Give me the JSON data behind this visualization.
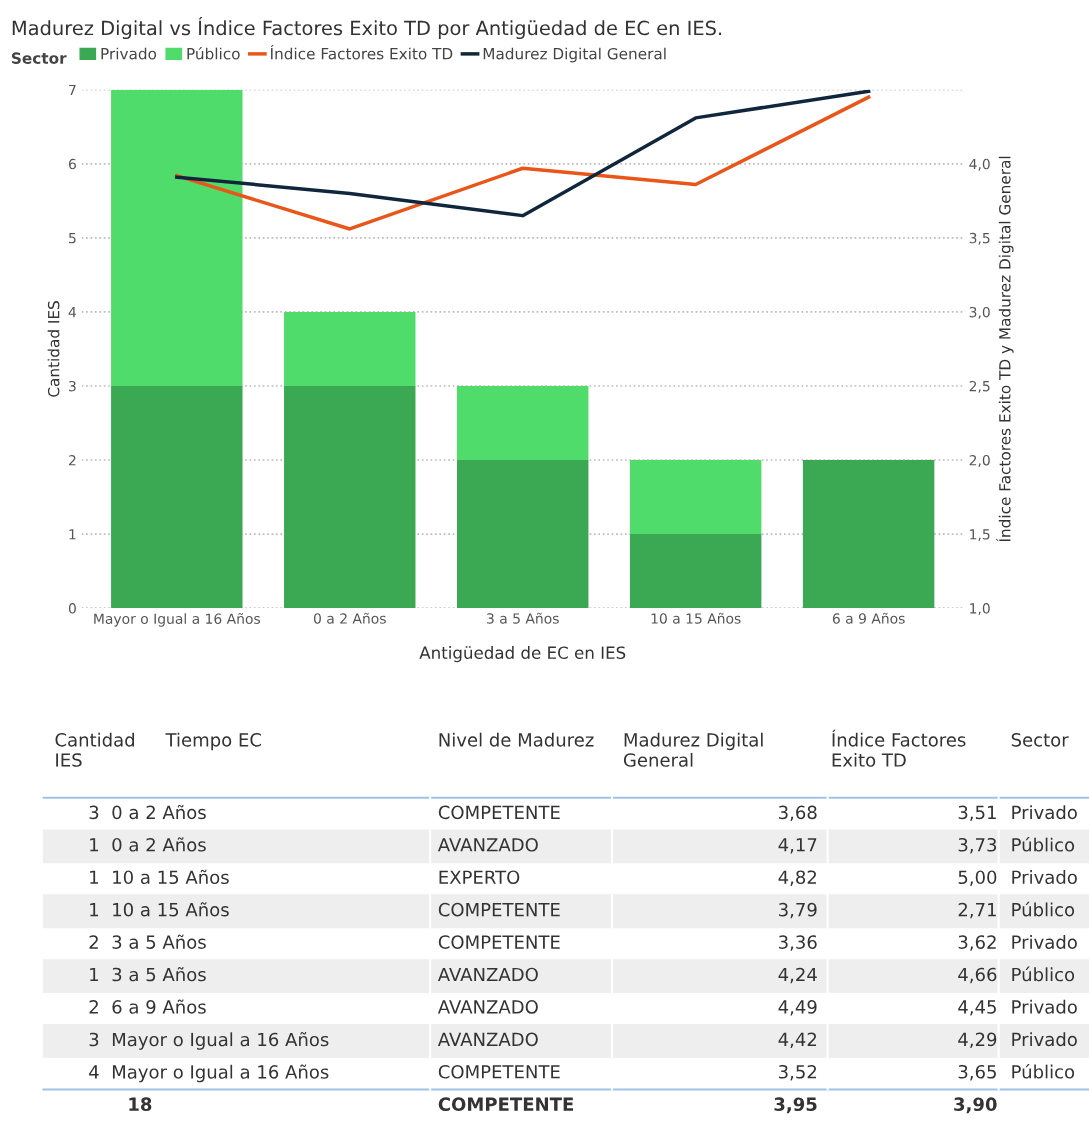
{
  "chart_data": [
    {
      "type": "bar",
      "title": "Madurez Digital vs Índice Factores Exito TD por Antigüedad de EC en IES.",
      "xlabel": "Antigüedad de EC en IES",
      "ylabel": "Cantidad IES",
      "y2label": "Índice Factores Exito TD y Madurez Digital General",
      "legend_title": "Sector",
      "categories": [
        "Mayor o Igual a 16 Años",
        "0 a 2 Años",
        "3 a 5 Años",
        "10 a 15 Años",
        "6 a 9 Años"
      ],
      "stacked": true,
      "series": [
        {
          "name": "Privado",
          "color": "#3ba853",
          "values": [
            3,
            3,
            2,
            1,
            2
          ]
        },
        {
          "name": "Público",
          "color": "#4fdc6b",
          "values": [
            4,
            1,
            1,
            1,
            0
          ]
        },
        {
          "name": "Índice Factores Exito TD",
          "type": "line",
          "axis": "y2",
          "color": "#e8561a",
          "values": [
            3.92,
            3.56,
            3.97,
            3.86,
            4.45
          ]
        },
        {
          "name": "Madurez Digital General",
          "type": "line",
          "axis": "y2",
          "color": "#10263d",
          "values": [
            3.91,
            3.8,
            3.65,
            4.31,
            4.49
          ]
        }
      ],
      "ylim": [
        0,
        7
      ],
      "yticks": [
        0,
        1,
        2,
        3,
        4,
        5,
        6,
        7
      ],
      "y2lim": [
        1,
        4.5
      ],
      "y2ticks": [
        {
          "value": 1.0,
          "label": "1,0"
        },
        {
          "value": 1.5,
          "label": "1,5"
        },
        {
          "value": 2.0,
          "label": "2,0"
        },
        {
          "value": 2.5,
          "label": "2,5"
        },
        {
          "value": 3.0,
          "label": "3,0"
        },
        {
          "value": 3.5,
          "label": "3,5"
        },
        {
          "value": 4.0,
          "label": "4,0"
        }
      ],
      "grid": "y",
      "legend": "top left",
      "marker": "none",
      "line_style": "solid"
    },
    {
      "type": "other",
      "categories": [
        "Cantidad\nIES",
        "Tiempo EC",
        "Nivel de Madurez",
        "Madurez Digital\nGeneral",
        "Índice Factores\nExito TD",
        "Sector"
      ],
      "cell_labels": [
        [
          "3  0 a 2 Años",
          "COMPETENTE",
          "3,68",
          "3,51",
          "Privado"
        ],
        [
          "1  0 a 2 Años",
          "AVANZADO",
          "4,17",
          "3,73",
          "Público"
        ],
        [
          "1  10 a 15 Años",
          "EXPERTO",
          "4,82",
          "5,00",
          "Privado"
        ],
        [
          "1  10 a 15 Años",
          "COMPETENTE",
          "3,79",
          "2,71",
          "Público"
        ],
        [
          "2  3 a 5 Años",
          "COMPETENTE",
          "3,36",
          "3,62",
          "Privado"
        ],
        [
          "1  3 a 5 Años",
          "AVANZADO",
          "4,24",
          "4,66",
          "Público"
        ],
        [
          "2  6 a 9 Años",
          "AVANZADO",
          "4,49",
          "4,45",
          "Privado"
        ],
        [
          "3  Mayor o Igual a 16 Años",
          "AVANZADO",
          "4,42",
          "4,29",
          "Privado"
        ],
        [
          "4  Mayor o Igual a 16 Años",
          "COMPETENTE",
          "3,52",
          "3,65",
          "Público"
        ],
        [
          "18",
          "COMPETENTE",
          "3,95",
          "3,90",
          null
        ]
      ]
    }
  ]
}
